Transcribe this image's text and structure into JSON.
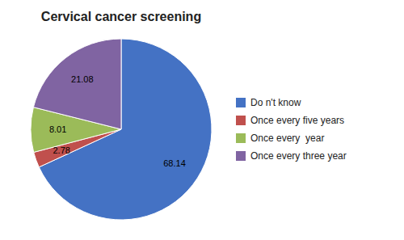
{
  "chart_data": {
    "type": "pie",
    "title": "Cervical cancer screening",
    "categories": [
      "Do n't know",
      "Once every five years",
      "Once every  year",
      "Once every three year"
    ],
    "values": [
      68.14,
      2.78,
      8.01,
      21.08
    ],
    "colors": [
      "#4472C4",
      "#C0504D",
      "#9BBB59",
      "#8064A2"
    ],
    "data_labels": true,
    "legend": "right"
  }
}
